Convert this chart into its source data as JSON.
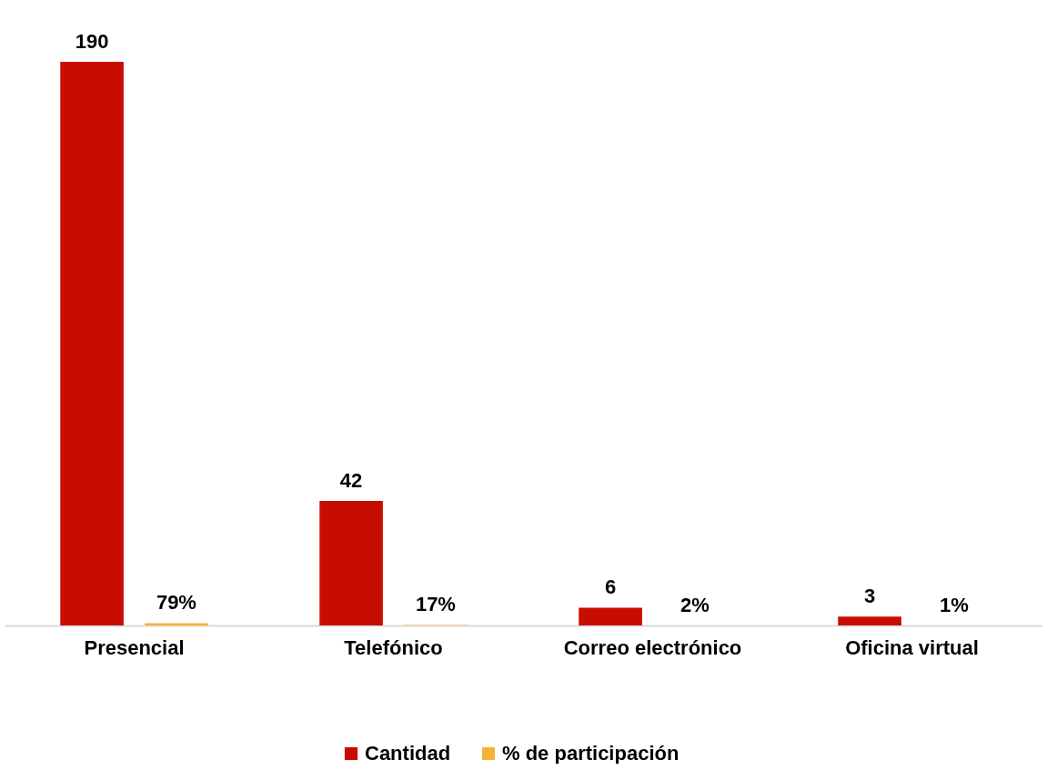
{
  "chart_data": {
    "type": "bar",
    "categories": [
      "Presencial",
      "Telefónico",
      "Correo electrónico",
      "Oficina virtual"
    ],
    "series": [
      {
        "name": "Cantidad",
        "color": "#c80d00",
        "values": [
          190,
          42,
          6,
          3
        ],
        "value_labels": [
          "190",
          "42",
          "6",
          "3"
        ]
      },
      {
        "name": "% de participación",
        "color": "#f5b335",
        "values": [
          0.79,
          0.17,
          0.02,
          0.01
        ],
        "value_labels": [
          "79%",
          "17%",
          "2%",
          "1%"
        ]
      }
    ],
    "grid": false,
    "legend": "bottom"
  }
}
